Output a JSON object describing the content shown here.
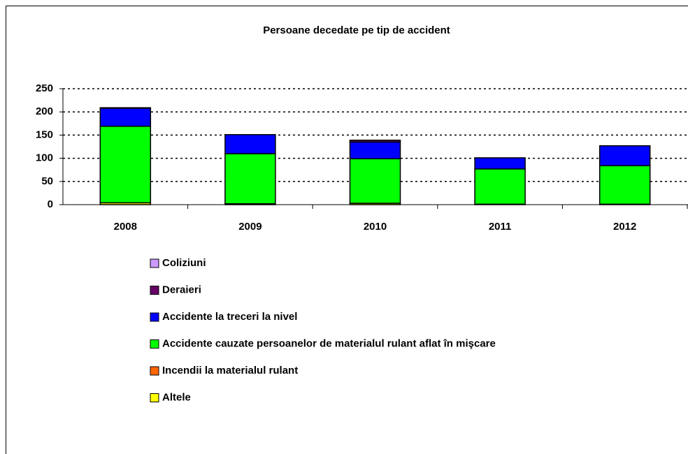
{
  "chart_data": {
    "type": "stacked-bar",
    "title": "Persoane decedate pe tip de accident",
    "categories": [
      "2008",
      "2009",
      "2010",
      "2011",
      "2012"
    ],
    "series": [
      {
        "name": "Coliziuni",
        "color": "#cc99ff",
        "values": [
          0,
          0,
          0,
          0,
          0
        ]
      },
      {
        "name": "Deraieri",
        "color": "#660066",
        "values": [
          1,
          0,
          4,
          0,
          0
        ]
      },
      {
        "name": "Accidente la treceri la nivel",
        "color": "#0000ff",
        "values": [
          39,
          41,
          36,
          24,
          43
        ]
      },
      {
        "name": "Accidente cauzate persoanelor de materialul rulant aflat în mişcare",
        "color": "#00ff00",
        "values": [
          165,
          108,
          96,
          76,
          83
        ]
      },
      {
        "name": "Incendii la materialul rulant",
        "color": "#ff6600",
        "values": [
          0,
          0,
          0,
          0,
          0
        ]
      },
      {
        "name": "Altele",
        "color": "#ffff00",
        "values": [
          4,
          2,
          3,
          1,
          1
        ]
      }
    ],
    "ylim": [
      0,
      250
    ],
    "yticks": [
      0,
      50,
      100,
      150,
      200,
      250
    ],
    "grid": true,
    "legend": "bottom"
  }
}
